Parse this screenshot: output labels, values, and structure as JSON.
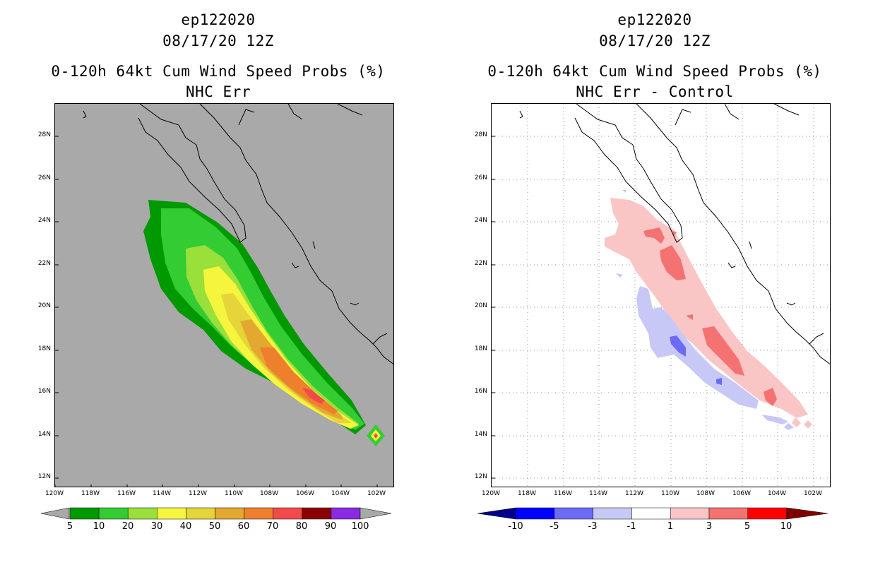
{
  "left": {
    "storm_id": "ep122020",
    "datetime": "08/17/20 12Z",
    "product": "0-120h 64kt Cum Wind Speed Probs (%)",
    "subtitle": "NHC Err",
    "background": "#a9a9a9",
    "colorbar": {
      "labels": [
        "5",
        "10",
        "20",
        "30",
        "40",
        "50",
        "60",
        "70",
        "80",
        "90",
        "100"
      ],
      "colors": [
        "#009900",
        "#33cc33",
        "#99e03a",
        "#f5f53d",
        "#e5d43a",
        "#e3a830",
        "#ee7f2d",
        "#f24a4a",
        "#8b0000",
        "#8a2be2"
      ],
      "end_color": "#a9a9a9"
    }
  },
  "right": {
    "storm_id": "ep122020",
    "datetime": "08/17/20 12Z",
    "product": "0-120h 64kt Cum Wind Speed Probs (%)",
    "subtitle": "NHC Err - Control",
    "background": "#ffffff",
    "colorbar": {
      "labels": [
        "-10",
        "-5",
        "-3",
        "-1",
        "1",
        "3",
        "5",
        "10"
      ],
      "colors": [
        "#0000ff",
        "#6b6bf3",
        "#c8c8f7",
        "#ffffff",
        "#f9c5c5",
        "#f47272",
        "#ff0000"
      ],
      "end_low": "#00008b",
      "end_high": "#800000"
    }
  },
  "axes": {
    "lat_labels": [
      "28N",
      "26N",
      "24N",
      "22N",
      "20N",
      "18N",
      "16N",
      "14N",
      "12N"
    ],
    "lon_labels": [
      "120W",
      "118W",
      "116W",
      "114W",
      "112W",
      "110W",
      "108W",
      "106W",
      "104W",
      "102W"
    ]
  },
  "chart_data": [
    {
      "type": "heatmap",
      "title": "0-120h 64kt Cum Wind Speed Probs (%)",
      "subtitle": "NHC Err",
      "units": "%",
      "xlim": [
        -120,
        -101
      ],
      "ylim": [
        11.5,
        29.5
      ],
      "levels": [
        5,
        10,
        20,
        30,
        40,
        50,
        60,
        70,
        80,
        90,
        100
      ],
      "max_region": "near 14N 102W (genesis point), values 70-80 along track near 16N 106W"
    },
    {
      "type": "heatmap",
      "title": "0-120h 64kt Cum Wind Speed Probs (%)",
      "subtitle": "NHC Err - Control",
      "units": "%",
      "xlim": [
        -120,
        -101
      ],
      "ylim": [
        11.5,
        29.5
      ],
      "levels": [
        -10,
        -5,
        -3,
        -1,
        1,
        3,
        5,
        10
      ]
    }
  ]
}
